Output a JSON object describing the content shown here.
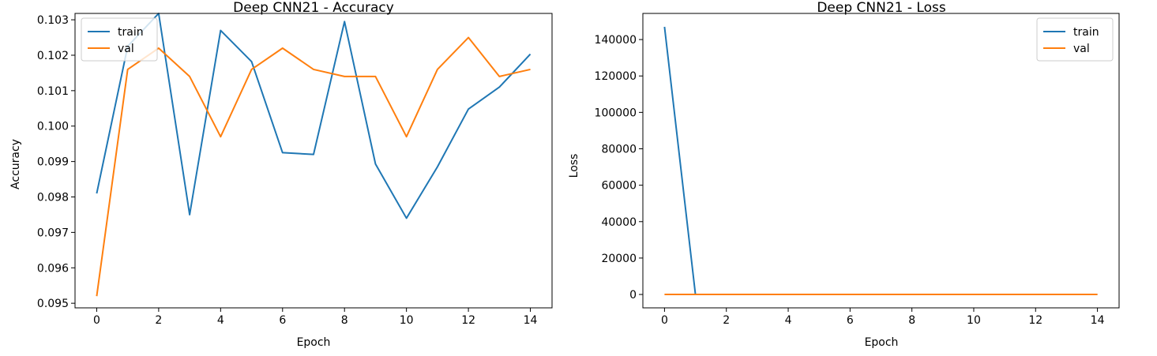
{
  "chart_data": [
    {
      "type": "line",
      "title": "Deep CNN21 - Accuracy",
      "xlabel": "Epoch",
      "ylabel": "Accuracy",
      "x": [
        0,
        1,
        2,
        3,
        4,
        5,
        6,
        7,
        8,
        9,
        10,
        11,
        12,
        13,
        14
      ],
      "xlim": [
        -0.7,
        14.7
      ],
      "ylim": [
        0.09487,
        0.10318
      ],
      "xticks": [
        0,
        2,
        4,
        6,
        8,
        10,
        12,
        14
      ],
      "xtick_labels": [
        "0",
        "2",
        "4",
        "6",
        "8",
        "10",
        "12",
        "14"
      ],
      "yticks": [
        0.095,
        0.096,
        0.097,
        0.098,
        0.099,
        0.1,
        0.101,
        0.102,
        0.103
      ],
      "ytick_labels": [
        "0.095",
        "0.096",
        "0.097",
        "0.098",
        "0.099",
        "0.100",
        "0.101",
        "0.102",
        "0.103"
      ],
      "legend_position": "upper-left",
      "grid": false,
      "series": [
        {
          "name": "train",
          "color": "#1f77b4",
          "values": [
            0.0981,
            0.10225,
            0.10318,
            0.0975,
            0.1027,
            0.10182,
            0.09925,
            0.0992,
            0.10295,
            0.09893,
            0.0974,
            0.09885,
            0.10048,
            0.1011,
            0.10203
          ]
        },
        {
          "name": "val",
          "color": "#ff7f0e",
          "values": [
            0.0952,
            0.1016,
            0.1022,
            0.1014,
            0.0997,
            0.1016,
            0.1022,
            0.1016,
            0.1014,
            0.1014,
            0.0997,
            0.1016,
            0.1025,
            0.1014,
            0.1016
          ]
        }
      ]
    },
    {
      "type": "line",
      "title": "Deep CNN21 - Loss",
      "xlabel": "Epoch",
      "ylabel": "Loss",
      "x": [
        0,
        1,
        2,
        3,
        4,
        5,
        6,
        7,
        8,
        9,
        10,
        11,
        12,
        13,
        14
      ],
      "xlim": [
        -0.7,
        14.7
      ],
      "ylim": [
        -7350,
        154350
      ],
      "xticks": [
        0,
        2,
        4,
        6,
        8,
        10,
        12,
        14
      ],
      "xtick_labels": [
        "0",
        "2",
        "4",
        "6",
        "8",
        "10",
        "12",
        "14"
      ],
      "yticks": [
        0,
        20000,
        40000,
        60000,
        80000,
        100000,
        120000,
        140000
      ],
      "ytick_labels": [
        "0",
        "20000",
        "40000",
        "60000",
        "80000",
        "100000",
        "120000",
        "140000"
      ],
      "legend_position": "upper-right",
      "grid": false,
      "series": [
        {
          "name": "train",
          "color": "#1f77b4",
          "values": [
            147000,
            2.3,
            2.3,
            2.3,
            2.3,
            2.3,
            2.3,
            2.3,
            2.3,
            2.3,
            2.3,
            2.3,
            2.3,
            2.3,
            2.3
          ]
        },
        {
          "name": "val",
          "color": "#ff7f0e",
          "values": [
            2.3,
            2.3,
            2.3,
            2.3,
            2.3,
            2.3,
            2.3,
            2.3,
            2.3,
            2.3,
            2.3,
            2.3,
            2.3,
            2.3,
            2.3
          ]
        }
      ]
    }
  ]
}
